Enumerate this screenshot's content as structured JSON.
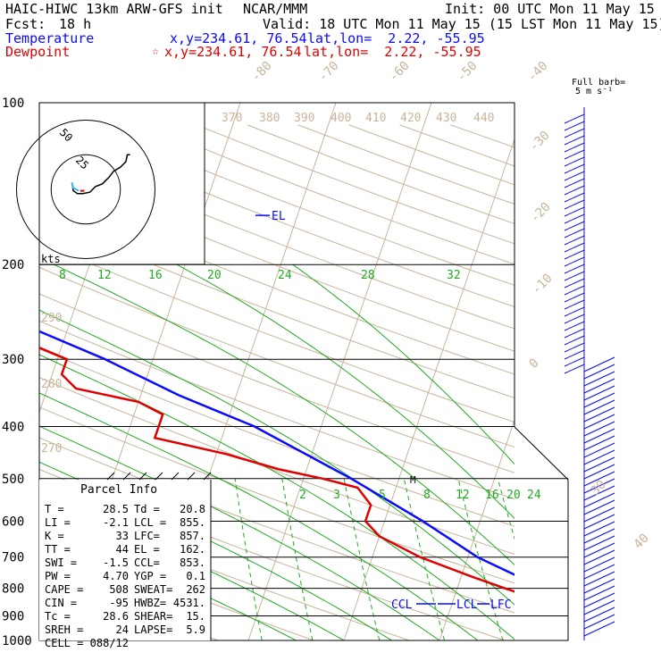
{
  "header": {
    "model": "HAIC-HIWC 13km ARW-GFS init",
    "center": "NCAR/MMM",
    "init": "Init: 00 UTC Mon 11 May 15",
    "fcst_label": "Fcst:",
    "fcst_value": "18 h",
    "valid": "Valid: 18 UTC Mon 11 May 15 (15 LST Mon 11 May 15)",
    "temperature_label": "Temperature",
    "dewpoint_label": "Dewpoint",
    "temperature_xy": "x,y=234.61, 76.54",
    "dewpoint_xy": "x,y=234.61, 76.54",
    "temperature_latlon": "lat,lon=  2.22, -55.95",
    "dewpoint_latlon": "lat,lon=  2.22, -55.95",
    "star_symbol": "☆"
  },
  "colors": {
    "temperature": "#0a0aff",
    "dewpoint": "#e00000",
    "mixing_ratio": "#22aa22",
    "background_lines": "#c8b49a",
    "frame": "#000000",
    "hodo_trace": "#000000",
    "hodo_recent": "#44bbee"
  },
  "chart_data": {
    "type": "line",
    "xlabel": "",
    "ylabel": "",
    "pressure_levels": [
      1000,
      900,
      800,
      700,
      600,
      500,
      400,
      300,
      200,
      100
    ],
    "pressure_labels": [
      "1000",
      "900",
      "800",
      "700",
      "600",
      "500",
      "400",
      "300",
      "200",
      "100"
    ],
    "isotherm_labels": [
      "-80",
      "-70",
      "-60",
      "-50",
      "-40",
      "-30",
      "-20",
      "-10",
      "0",
      "30",
      "40"
    ],
    "theta_labels": [
      "370",
      "380",
      "390",
      "400",
      "410",
      "420",
      "430",
      "440",
      "290",
      "280",
      "270"
    ],
    "mixing_ratio_labels_upper": [
      "8",
      "12",
      "16",
      "20",
      "24",
      "28",
      "32"
    ],
    "mixing_ratio_labels_lower": [
      "2",
      "3",
      "5",
      "8",
      "12",
      "16",
      "20",
      "24"
    ],
    "series": [
      {
        "name": "Temperature",
        "pressure": [
          950,
          900,
          860,
          800,
          700,
          600,
          500,
          400,
          350,
          300,
          250,
          200,
          150,
          120,
          100
        ],
        "temperature": [
          31,
          28.5,
          24,
          19,
          11,
          4,
          -5,
          -17,
          -26,
          -35,
          -47,
          -57,
          -68,
          -75,
          -80
        ]
      },
      {
        "name": "Dewpoint",
        "pressure": [
          950,
          900,
          860,
          830,
          800,
          760,
          700,
          640,
          600,
          560,
          520,
          500,
          480,
          450,
          420,
          400,
          380,
          360,
          340,
          320,
          300,
          270,
          240,
          210,
          200,
          180,
          170,
          160,
          150,
          140,
          130,
          120,
          110,
          100
        ],
        "temperature": [
          20,
          20.8,
          21,
          18,
          15,
          11,
          5,
          0,
          -2,
          -2,
          -4,
          -8,
          -13,
          -19,
          -27,
          -27,
          -27,
          -30,
          -37,
          -39,
          -39,
          -46,
          -54,
          -63,
          -67,
          -70,
          -73,
          -78,
          -80,
          -80,
          -81,
          -84,
          -85,
          -87
        ]
      }
    ],
    "annotations": {
      "EL": "EL",
      "CCL": "CCL",
      "LCL": "LCL",
      "LFC": "LFC",
      "M": "M"
    }
  },
  "hodograph": {
    "ring_labels": [
      "50",
      "25"
    ],
    "units_label": "kts",
    "trace": [
      [
        -10,
        5
      ],
      [
        -9,
        -1
      ],
      [
        -6,
        -3
      ],
      [
        -2,
        -3
      ],
      [
        3,
        -2
      ],
      [
        7,
        2
      ],
      [
        12,
        4
      ],
      [
        17,
        9
      ],
      [
        20,
        13
      ],
      [
        25,
        16
      ],
      [
        29,
        20
      ],
      [
        30,
        25
      ],
      [
        32,
        25
      ]
    ],
    "recent": [
      [
        -10,
        5
      ],
      [
        -9,
        1
      ],
      [
        -5,
        -1
      ]
    ],
    "storm_motion": [
      [
        -4,
        -1
      ],
      [
        -1,
        -1
      ]
    ]
  },
  "wind_barbs": {
    "title": "Full barb=",
    "units": "5 m s⁻¹"
  },
  "parcel_info": {
    "title": "Parcel Info",
    "rows": [
      {
        "a_label": "T  =",
        "a_val": "28.5",
        "b_label": "Td =",
        "b_val": "20.8"
      },
      {
        "a_label": "LI =",
        "a_val": "-2.1",
        "b_label": "LCL =",
        "b_val": "855."
      },
      {
        "a_label": "K  =",
        "a_val": "33",
        "b_label": "LFC=",
        "b_val": "857."
      },
      {
        "a_label": "TT =",
        "a_val": "44",
        "b_label": "EL =",
        "b_val": "162."
      },
      {
        "a_label": "SWI =",
        "a_val": "-1.5",
        "b_label": "CCL=",
        "b_val": "853."
      },
      {
        "a_label": "PW =",
        "a_val": "4.70",
        "b_label": "YGP =",
        "b_val": "0.1"
      },
      {
        "a_label": "CAPE =",
        "a_val": "508",
        "b_label": "SWEAT=",
        "b_val": "262"
      },
      {
        "a_label": "CIN =",
        "a_val": "-95",
        "b_label": "HWBZ=",
        "b_val": "4531."
      },
      {
        "a_label": "Tc =",
        "a_val": "28.6",
        "b_label": "SHEAR=",
        "b_val": "15."
      },
      {
        "a_label": "SREH =",
        "a_val": "24",
        "b_label": "LAPSE=",
        "b_val": "5.9"
      },
      {
        "a_label": "CELL =",
        "a_val": "088/12",
        "b_label": "",
        "b_val": ""
      }
    ]
  }
}
